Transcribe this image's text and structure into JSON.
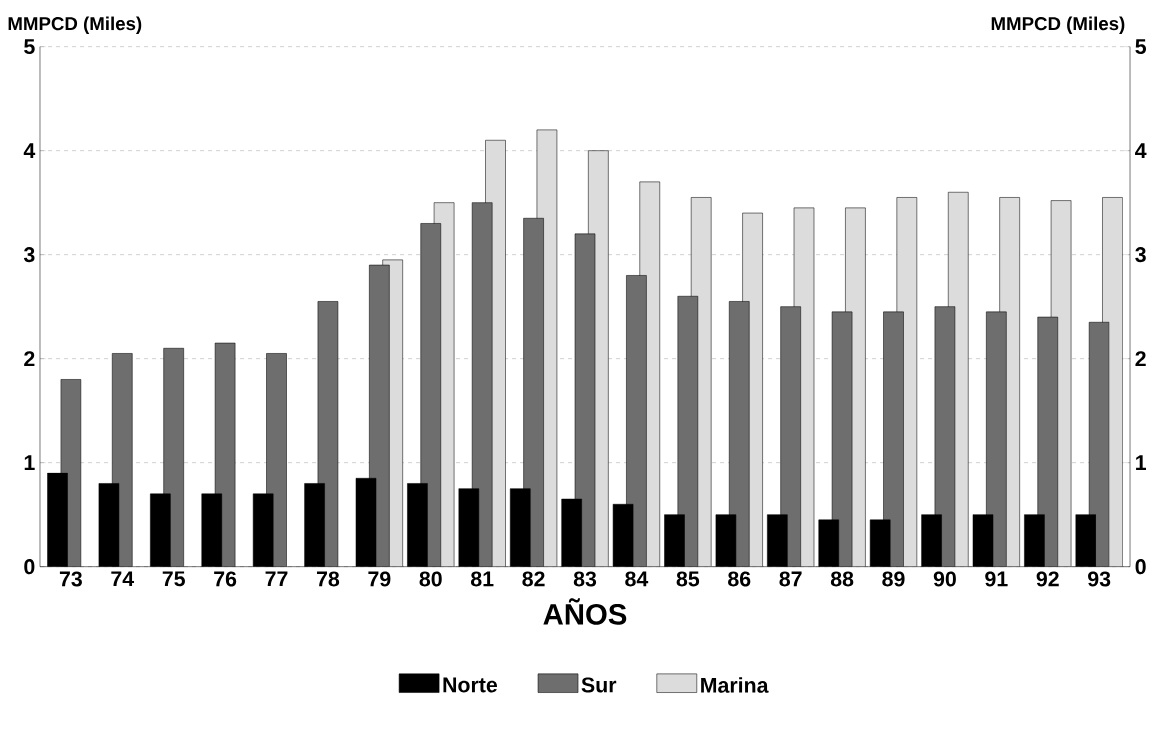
{
  "chart_data": {
    "type": "bar",
    "xlabel": "AÑOS",
    "ylabel": "MMPCD (Miles)",
    "y2label": "MMPCD (Miles)",
    "categories": [
      "73",
      "74",
      "75",
      "76",
      "77",
      "78",
      "79",
      "80",
      "81",
      "82",
      "83",
      "84",
      "85",
      "86",
      "87",
      "88",
      "89",
      "90",
      "91",
      "92",
      "93"
    ],
    "series": [
      {
        "name": "Norte",
        "color": "#000000",
        "values": [
          0.9,
          0.8,
          0.7,
          0.7,
          0.7,
          0.8,
          0.85,
          0.8,
          0.75,
          0.75,
          0.65,
          0.6,
          0.5,
          0.5,
          0.5,
          0.45,
          0.45,
          0.5,
          0.5,
          0.5,
          0.5
        ]
      },
      {
        "name": "Sur",
        "color": "#6e6e6e",
        "values": [
          1.8,
          2.05,
          2.1,
          2.15,
          2.05,
          2.55,
          2.9,
          3.3,
          3.5,
          3.35,
          3.2,
          2.8,
          2.6,
          2.55,
          2.5,
          2.45,
          2.45,
          2.5,
          2.45,
          2.4,
          2.35
        ]
      },
      {
        "name": "Marina",
        "color": "#dcdcdc",
        "values": [
          null,
          null,
          null,
          null,
          null,
          null,
          2.95,
          3.5,
          4.1,
          4.2,
          4.0,
          3.7,
          3.55,
          3.4,
          3.45,
          3.45,
          3.55,
          3.6,
          3.55,
          3.52,
          3.55
        ]
      }
    ],
    "ylim": [
      0,
      5
    ],
    "yticks": [
      0,
      1,
      2,
      3,
      4,
      5
    ],
    "y2lim": [
      0,
      5
    ],
    "y2ticks": [
      0,
      1,
      2,
      3,
      4,
      5
    ],
    "grid": "y",
    "legend": "bottom"
  }
}
